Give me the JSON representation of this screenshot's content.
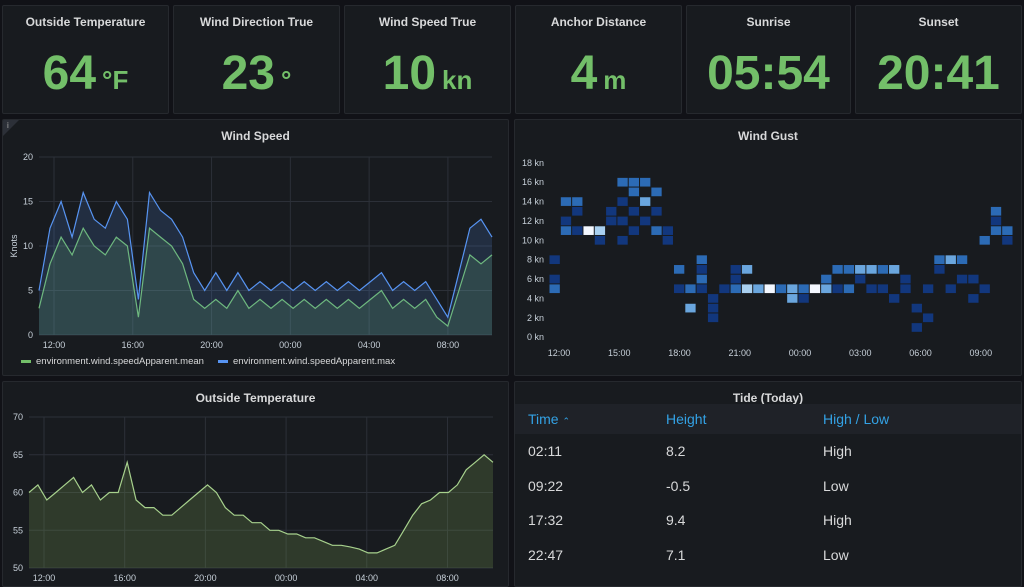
{
  "stats": [
    {
      "title": "Outside Temperature",
      "value": "64",
      "unit": "°F"
    },
    {
      "title": "Wind Direction True",
      "value": "23",
      "unit": "°"
    },
    {
      "title": "Wind Speed True",
      "value": "10",
      "unit": "kn"
    },
    {
      "title": "Anchor Distance",
      "value": "4",
      "unit": "m"
    },
    {
      "title": "Sunrise",
      "value": "05:54",
      "unit": ""
    },
    {
      "title": "Sunset",
      "value": "20:41",
      "unit": ""
    }
  ],
  "colors": {
    "stat_green": "#73bf69",
    "mean_series": "#73bf69",
    "max_series": "#5794f2",
    "table_header": "#33a2e5"
  },
  "wind_speed": {
    "title": "Wind Speed",
    "info_icon": "i",
    "chart_data": {
      "type": "area",
      "title": "Wind Speed",
      "ylabel": "Knots",
      "ylim": [
        0,
        20
      ],
      "yticks": [
        "0",
        "5",
        "10",
        "15",
        "20"
      ],
      "xticks": [
        "12:00",
        "16:00",
        "20:00",
        "00:00",
        "04:00",
        "08:00"
      ],
      "series": [
        {
          "name": "environment.wind.speedApparent.mean",
          "values": [
            3,
            8,
            11,
            9,
            12,
            10,
            9,
            11,
            10,
            2,
            12,
            11,
            10,
            8,
            4,
            3,
            4,
            3,
            5,
            3,
            4,
            3,
            4,
            3,
            4,
            3,
            4,
            3,
            4,
            3,
            4,
            5,
            3,
            4,
            3,
            4,
            2,
            1,
            5,
            9,
            8,
            9
          ]
        },
        {
          "name": "environment.wind.speedApparent.max",
          "values": [
            5,
            12,
            15,
            11,
            16,
            13,
            12,
            15,
            13,
            4,
            16,
            14,
            13,
            11,
            7,
            5,
            7,
            5,
            7,
            5,
            6,
            5,
            6,
            5,
            6,
            5,
            6,
            5,
            6,
            5,
            6,
            7,
            5,
            6,
            5,
            6,
            4,
            2,
            7,
            12,
            13,
            11
          ]
        }
      ],
      "grid": true
    }
  },
  "wind_gust": {
    "title": "Wind Gust",
    "chart_data": {
      "type": "heatmap",
      "title": "Wind Gust",
      "yticks": [
        "0 kn",
        "2 kn",
        "4 kn",
        "6 kn",
        "8 kn",
        "10 kn",
        "12 kn",
        "14 kn",
        "16 kn",
        "18 kn"
      ],
      "xticks": [
        "12:00",
        "15:00",
        "18:00",
        "21:00",
        "00:00",
        "03:00",
        "06:00",
        "09:00"
      ],
      "ylim": [
        0,
        18
      ],
      "cells": [
        [
          0,
          6,
          1
        ],
        [
          0,
          8,
          1
        ],
        [
          0,
          5,
          2
        ],
        [
          1,
          14,
          2
        ],
        [
          1,
          12,
          1
        ],
        [
          1,
          11,
          2
        ],
        [
          2,
          14,
          2
        ],
        [
          2,
          13,
          1
        ],
        [
          2,
          11,
          1
        ],
        [
          3,
          11,
          5
        ],
        [
          4,
          11,
          4
        ],
        [
          4,
          10,
          1
        ],
        [
          5,
          13,
          1
        ],
        [
          5,
          12,
          1
        ],
        [
          6,
          16,
          2
        ],
        [
          6,
          14,
          1
        ],
        [
          6,
          12,
          1
        ],
        [
          6,
          10,
          1
        ],
        [
          7,
          16,
          2
        ],
        [
          7,
          15,
          2
        ],
        [
          7,
          13,
          1
        ],
        [
          7,
          11,
          1
        ],
        [
          8,
          16,
          2
        ],
        [
          8,
          14,
          3
        ],
        [
          8,
          12,
          1
        ],
        [
          9,
          15,
          2
        ],
        [
          9,
          13,
          1
        ],
        [
          9,
          11,
          2
        ],
        [
          10,
          11,
          1
        ],
        [
          10,
          10,
          1
        ],
        [
          11,
          7,
          2
        ],
        [
          11,
          5,
          1
        ],
        [
          12,
          5,
          2
        ],
        [
          12,
          3,
          3
        ],
        [
          13,
          8,
          2
        ],
        [
          13,
          7,
          1
        ],
        [
          13,
          5,
          1
        ],
        [
          13,
          6,
          2
        ],
        [
          14,
          4,
          1
        ],
        [
          14,
          3,
          1
        ],
        [
          14,
          2,
          1
        ],
        [
          15,
          5,
          1
        ],
        [
          16,
          5,
          2
        ],
        [
          16,
          7,
          1
        ],
        [
          16,
          6,
          1
        ],
        [
          17,
          5,
          4
        ],
        [
          17,
          7,
          3
        ],
        [
          18,
          5,
          3
        ],
        [
          19,
          5,
          5
        ],
        [
          20,
          5,
          2
        ],
        [
          21,
          5,
          3
        ],
        [
          21,
          4,
          3
        ],
        [
          22,
          5,
          2
        ],
        [
          22,
          4,
          1
        ],
        [
          23,
          5,
          5
        ],
        [
          24,
          5,
          3
        ],
        [
          24,
          6,
          2
        ],
        [
          25,
          7,
          2
        ],
        [
          25,
          5,
          1
        ],
        [
          26,
          7,
          2
        ],
        [
          26,
          5,
          2
        ],
        [
          27,
          7,
          3
        ],
        [
          27,
          6,
          1
        ],
        [
          28,
          7,
          3
        ],
        [
          28,
          5,
          1
        ],
        [
          29,
          7,
          2
        ],
        [
          29,
          5,
          1
        ],
        [
          30,
          7,
          3
        ],
        [
          30,
          4,
          1
        ],
        [
          31,
          6,
          1
        ],
        [
          31,
          5,
          1
        ],
        [
          32,
          3,
          1
        ],
        [
          32,
          1,
          1
        ],
        [
          33,
          5,
          1
        ],
        [
          33,
          2,
          1
        ],
        [
          34,
          8,
          2
        ],
        [
          34,
          7,
          1
        ],
        [
          35,
          8,
          3
        ],
        [
          35,
          5,
          1
        ],
        [
          36,
          8,
          2
        ],
        [
          36,
          6,
          1
        ],
        [
          37,
          6,
          1
        ],
        [
          37,
          4,
          1
        ],
        [
          38,
          10,
          2
        ],
        [
          38,
          5,
          1
        ],
        [
          39,
          13,
          2
        ],
        [
          39,
          11,
          2
        ],
        [
          39,
          12,
          1
        ],
        [
          40,
          11,
          2
        ],
        [
          40,
          10,
          1
        ]
      ],
      "rows": 19
    }
  },
  "outside_temp": {
    "title": "Outside Temperature",
    "chart_data": {
      "type": "area",
      "title": "Outside Temperature",
      "ylim": [
        50,
        70
      ],
      "yticks": [
        "50",
        "55",
        "60",
        "65",
        "70"
      ],
      "xticks": [
        "12:00",
        "16:00",
        "20:00",
        "00:00",
        "04:00",
        "08:00"
      ],
      "series": [
        {
          "name": "",
          "values": [
            60,
            61,
            59,
            60,
            61,
            62,
            60,
            61,
            59,
            60,
            60,
            64,
            59,
            58,
            58,
            57,
            57,
            58,
            59,
            60,
            61,
            60,
            58,
            57,
            57,
            56,
            56,
            55,
            55,
            54.5,
            54.5,
            54,
            54,
            53.5,
            53,
            53,
            52.8,
            52.5,
            52,
            52,
            52.5,
            53,
            55,
            57,
            58.5,
            59,
            60,
            60,
            61,
            63,
            64,
            65,
            64
          ]
        }
      ],
      "grid": true
    }
  },
  "tide": {
    "title": "Tide (Today)",
    "headers": {
      "time": "Time",
      "height": "Height",
      "high_low": "High / Low"
    },
    "sort_icon": "chevron-up-icon",
    "rows": [
      {
        "time": "02:11",
        "height": "8.2",
        "high_low": "High"
      },
      {
        "time": "09:22",
        "height": "-0.5",
        "high_low": "Low"
      },
      {
        "time": "17:32",
        "height": "9.4",
        "high_low": "High"
      },
      {
        "time": "22:47",
        "height": "7.1",
        "high_low": "Low"
      }
    ]
  }
}
